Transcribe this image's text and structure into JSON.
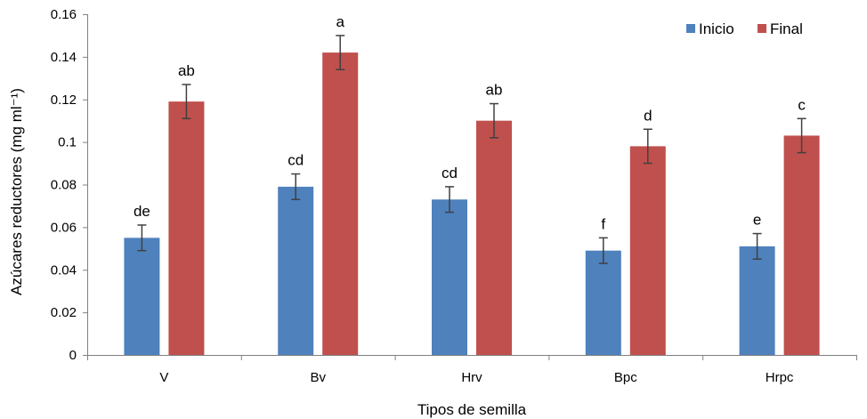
{
  "chart_data": {
    "type": "bar",
    "xlabel": "Tipos de semilla",
    "ylabel": "Azúcares reductores (mg ml⁻¹)",
    "ylim": [
      0,
      0.16
    ],
    "yticks": [
      0,
      0.02,
      0.04,
      0.06,
      0.08,
      0.1,
      0.12,
      0.14,
      0.16
    ],
    "ytick_labels": [
      "0",
      "0.02",
      "0.04",
      "0.06",
      "0.08",
      "0.1",
      "0.12",
      "0.14",
      "0.16"
    ],
    "grid": false,
    "legend": "top-right",
    "categories": [
      "V",
      "Bv",
      "Hrv",
      "Bpc",
      "Hrpc"
    ],
    "series": [
      {
        "name": "Inicio",
        "color": "#4F81BD",
        "values": [
          0.055,
          0.079,
          0.073,
          0.049,
          0.051
        ],
        "errors": [
          0.006,
          0.006,
          0.006,
          0.006,
          0.006
        ],
        "labels": [
          "de",
          "cd",
          "cd",
          "f",
          "e"
        ]
      },
      {
        "name": "Final",
        "color": "#C0504D",
        "values": [
          0.119,
          0.142,
          0.11,
          0.098,
          0.103
        ],
        "errors": [
          0.008,
          0.008,
          0.008,
          0.008,
          0.008
        ],
        "labels": [
          "ab",
          "a",
          "ab",
          "d",
          "c"
        ]
      }
    ]
  }
}
